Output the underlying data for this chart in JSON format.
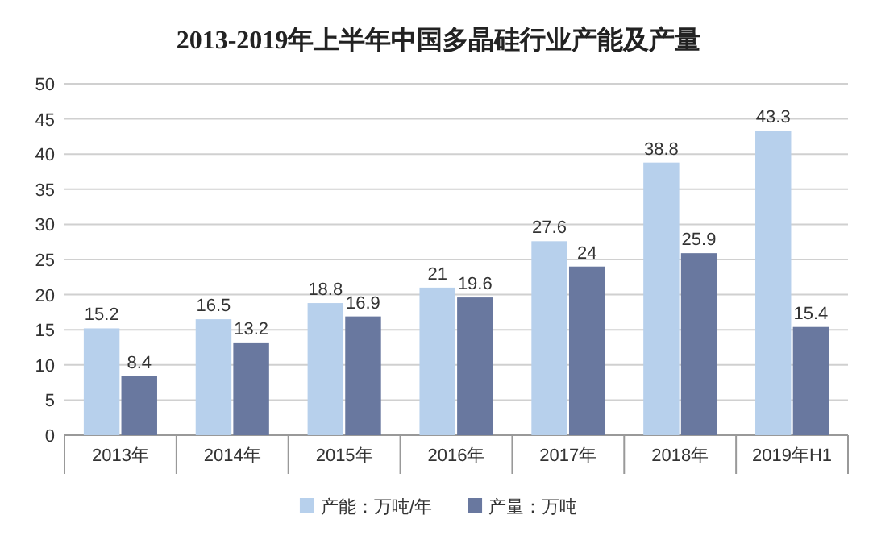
{
  "chart_data": {
    "type": "bar",
    "title": "2013-2019年上半年中国多晶硅行业产能及产量",
    "categories": [
      "2013年",
      "2014年",
      "2015年",
      "2016年",
      "2017年",
      "2018年",
      "2019年H1"
    ],
    "series": [
      {
        "name": "产能：万吨/年",
        "color": "#b7d0ec",
        "values": [
          15.2,
          16.5,
          18.8,
          21,
          27.6,
          38.8,
          43.3
        ]
      },
      {
        "name": "产量：万吨",
        "color": "#69789f",
        "values": [
          8.4,
          13.2,
          16.9,
          19.6,
          24,
          25.9,
          15.4
        ]
      }
    ],
    "ylim": [
      0,
      50
    ],
    "yticks": [
      0,
      5,
      10,
      15,
      20,
      25,
      30,
      35,
      40,
      45,
      50
    ],
    "grid": "y",
    "legend": "bottom",
    "data_labels": true
  }
}
